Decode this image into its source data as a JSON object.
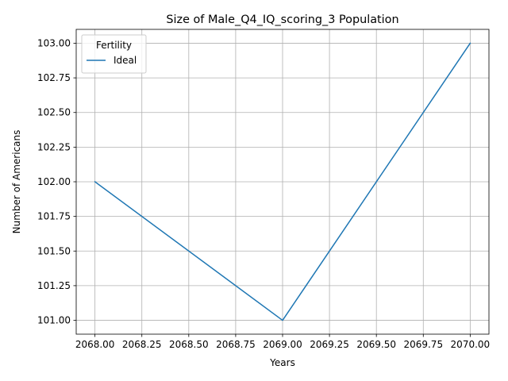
{
  "chart_data": {
    "type": "line",
    "title": "Size of Male_Q4_IQ_scoring_3 Population",
    "xlabel": "Years",
    "ylabel": "Number of Americans",
    "xlim": [
      2067.9,
      2070.1
    ],
    "ylim": [
      100.9,
      103.1
    ],
    "x_ticks": [
      "2068.00",
      "2068.25",
      "2068.50",
      "2068.75",
      "2069.00",
      "2069.25",
      "2069.50",
      "2069.75",
      "2070.00"
    ],
    "x_tick_values": [
      2068.0,
      2068.25,
      2068.5,
      2068.75,
      2069.0,
      2069.25,
      2069.5,
      2069.75,
      2070.0
    ],
    "y_ticks": [
      "101.00",
      "101.25",
      "101.50",
      "101.75",
      "102.00",
      "102.25",
      "102.50",
      "102.75",
      "103.00"
    ],
    "y_tick_values": [
      101.0,
      101.25,
      101.5,
      101.75,
      102.0,
      102.25,
      102.5,
      102.75,
      103.0
    ],
    "grid": true,
    "legend": {
      "title": "Fertility",
      "placement": "top-left"
    },
    "series": [
      {
        "name": "Ideal",
        "color": "#1f77b4",
        "x": [
          2068,
          2069,
          2070
        ],
        "y": [
          102,
          101,
          103
        ]
      }
    ]
  }
}
